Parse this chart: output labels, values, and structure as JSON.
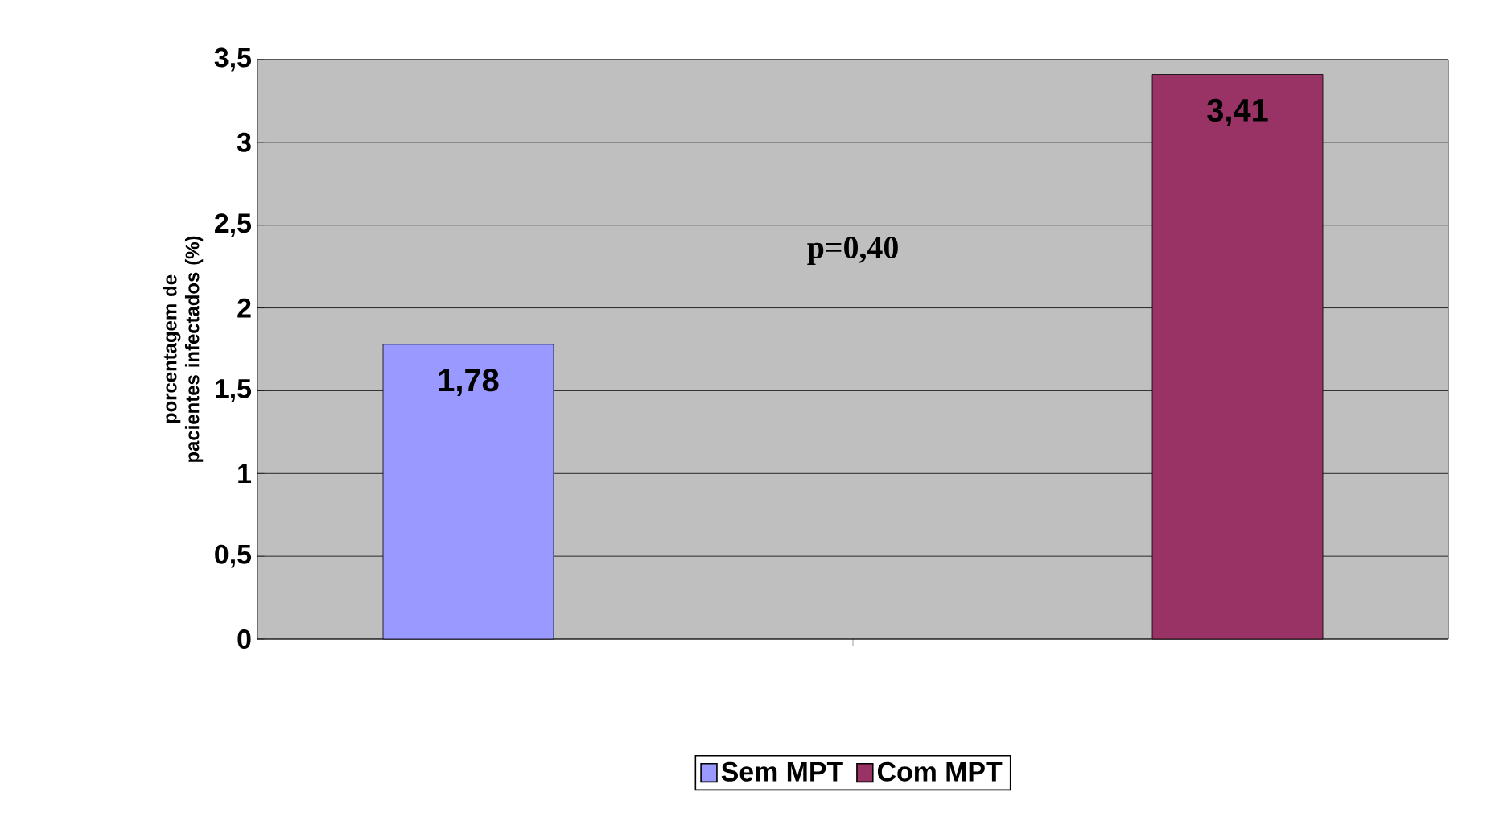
{
  "chart_data": {
    "type": "bar",
    "categories": [
      null
    ],
    "series": [
      {
        "name": "Sem MPT",
        "color": "#9999ff",
        "values": [
          1.78
        ],
        "value_labels": [
          "1,78"
        ]
      },
      {
        "name": "Com MPT",
        "color": "#993366",
        "values": [
          3.41
        ],
        "value_labels": [
          "3,41"
        ]
      }
    ],
    "ylabel": "porcentagem de pacientes infectados (%)",
    "ylim": [
      0,
      3.5
    ],
    "yticks": [
      0,
      {
        "value": 0.5,
        "label": "0,5"
      },
      1,
      {
        "value": 1.5,
        "label": "1,5"
      },
      2,
      {
        "value": 2.5,
        "label": "2,5"
      },
      3,
      {
        "value": 3.5,
        "label": "3,5"
      }
    ],
    "annotations": [
      "p=0,40"
    ],
    "grid": "y",
    "legend": "bottom"
  }
}
